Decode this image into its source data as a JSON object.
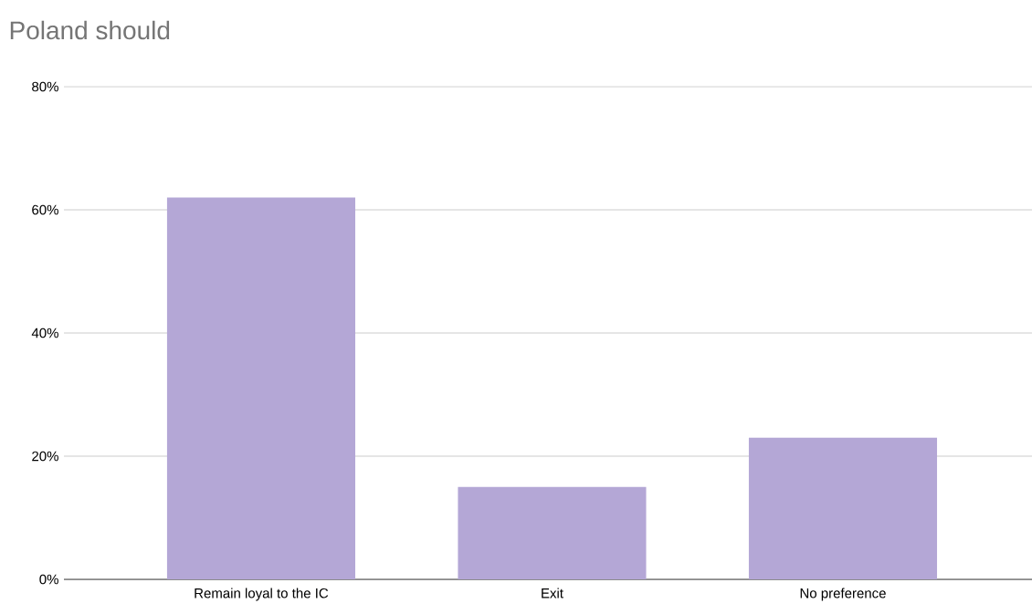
{
  "chart_data": {
    "type": "bar",
    "title": "Poland should",
    "categories": [
      "Remain loyal to the IC",
      "Exit",
      "No preference"
    ],
    "values": [
      62,
      15,
      23
    ],
    "color": "#b4a7d6",
    "ylim": [
      0,
      80
    ],
    "yticks": [
      {
        "value": 0,
        "label": "0%"
      },
      {
        "value": 20,
        "label": "20%"
      },
      {
        "value": 40,
        "label": "40%"
      },
      {
        "value": 60,
        "label": "60%"
      },
      {
        "value": 80,
        "label": "80%"
      }
    ],
    "grid": "y"
  }
}
